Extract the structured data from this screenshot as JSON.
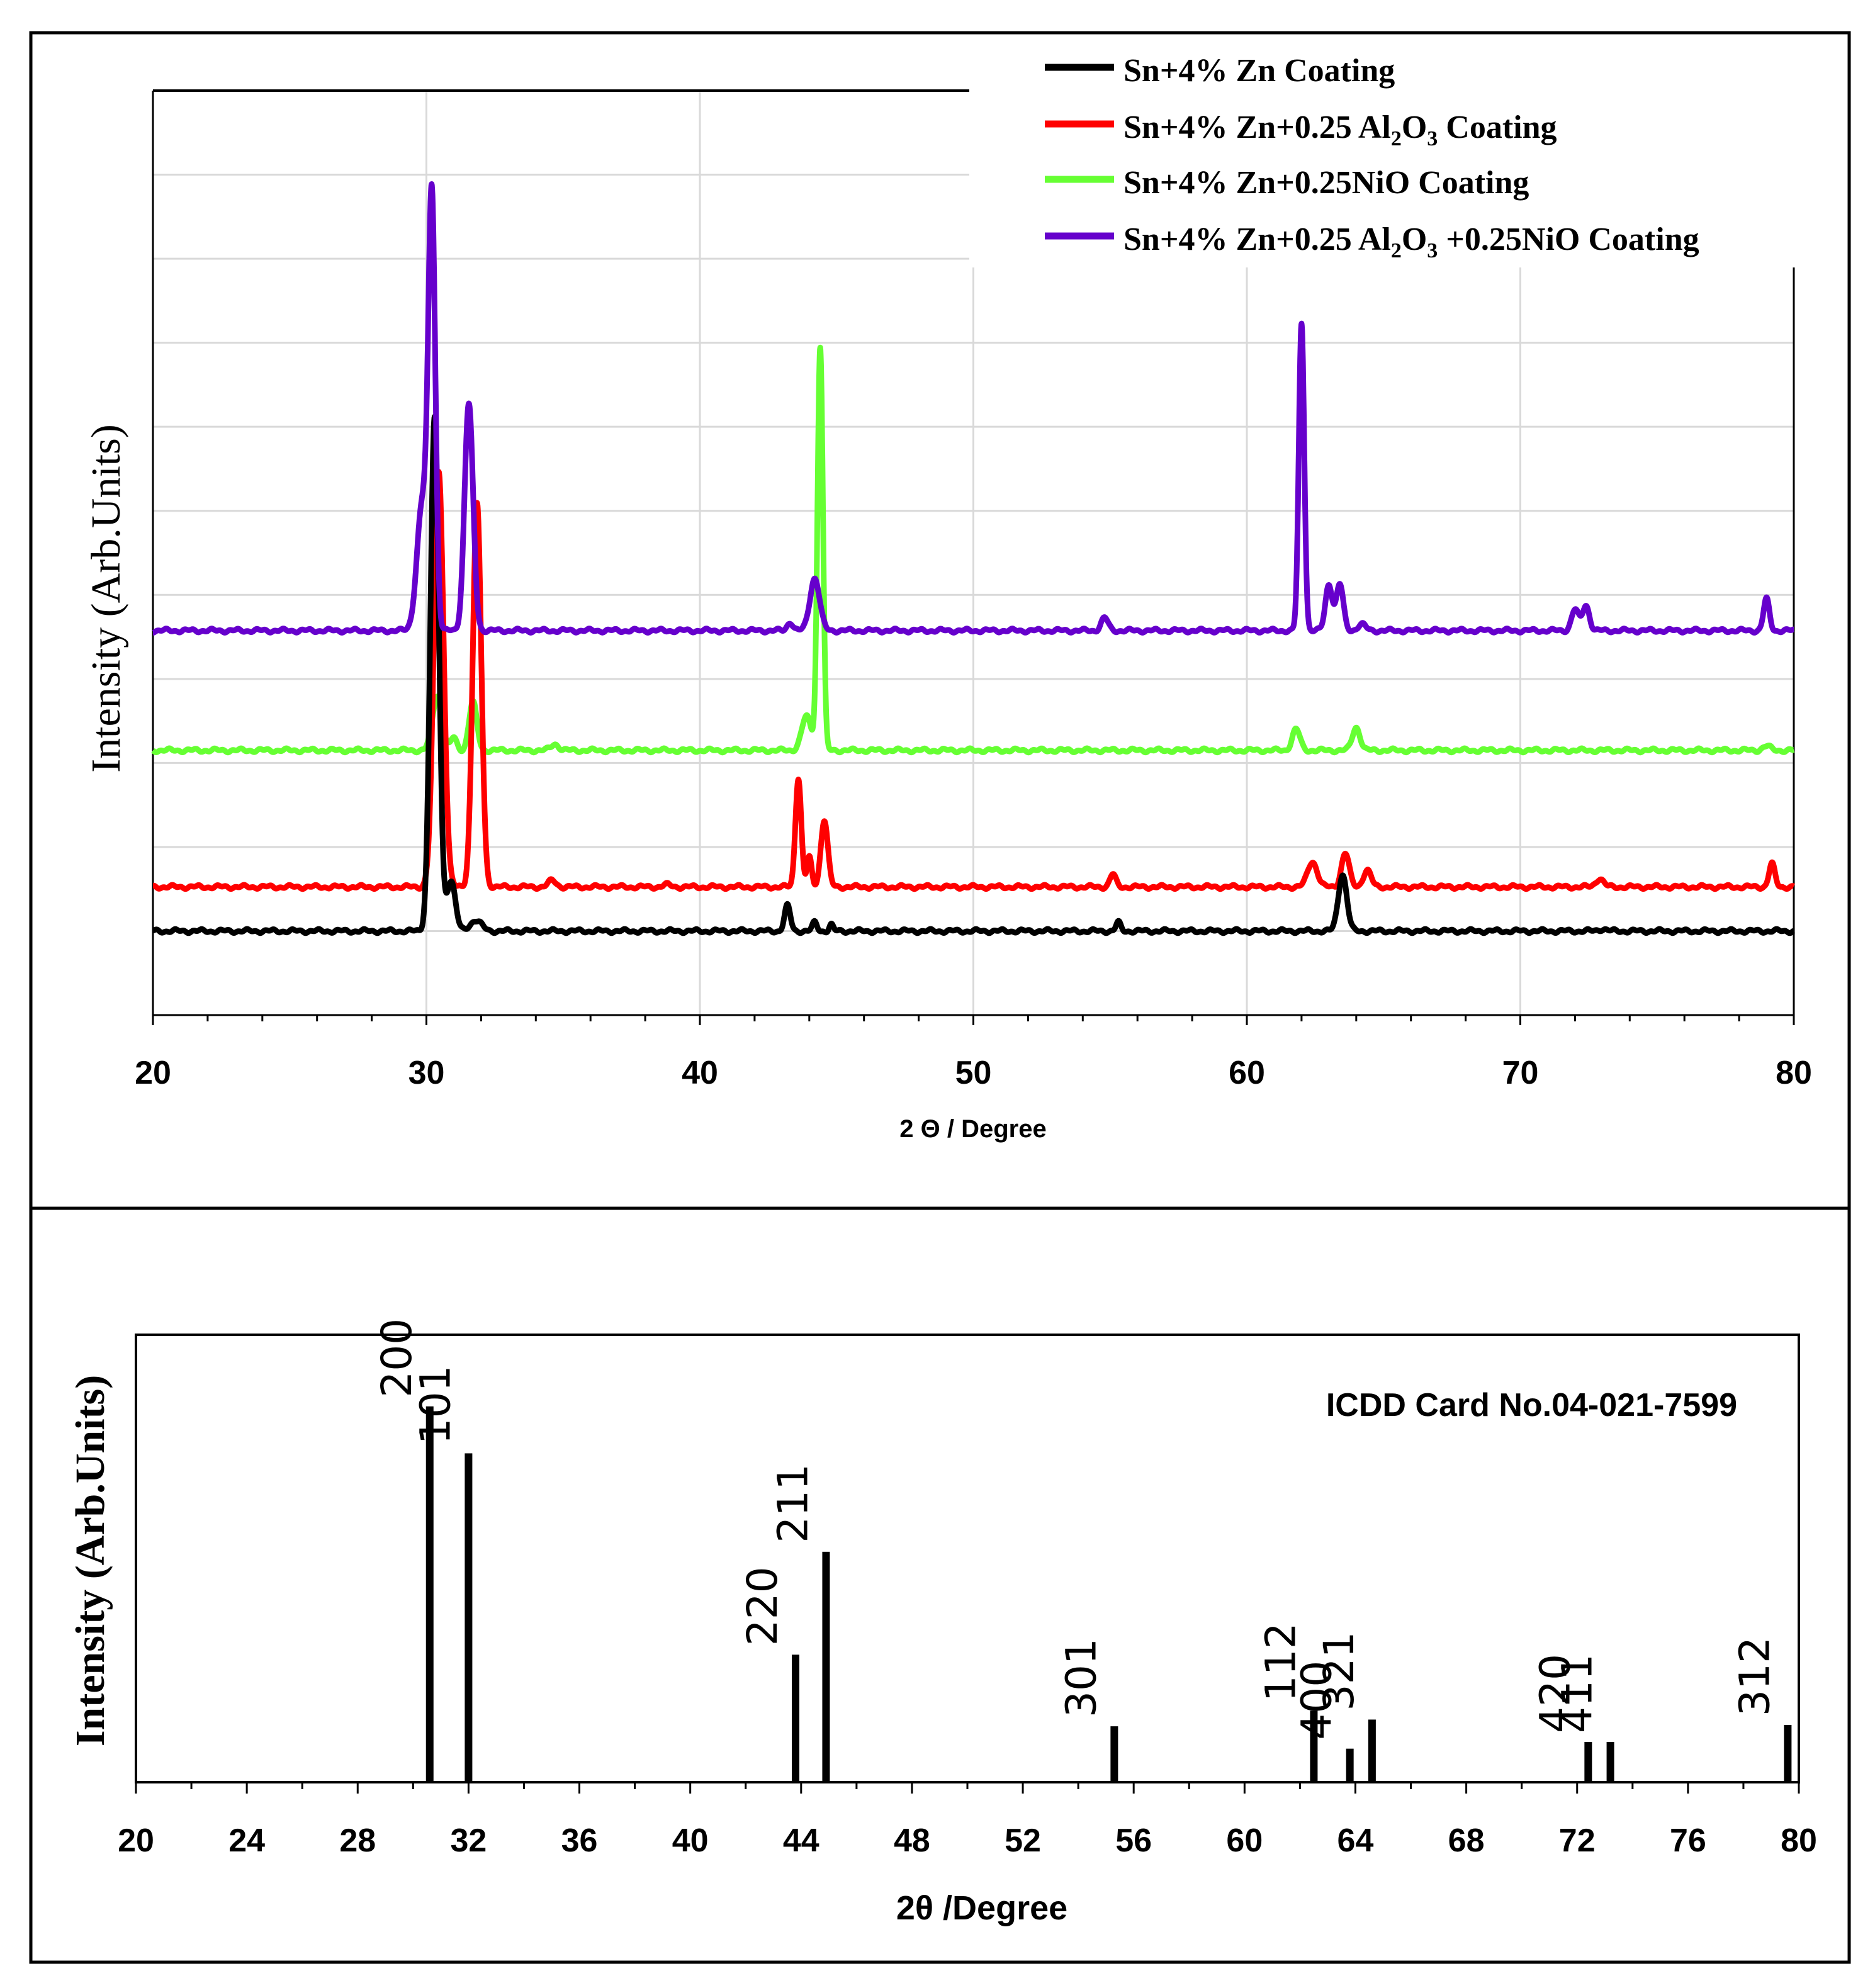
{
  "chart_data": [
    {
      "type": "line",
      "panel": "top",
      "xlabel": "2 Θ / Degree",
      "ylabel": "Intensity (Arb.Units)",
      "xlim": [
        20,
        80
      ],
      "ylim": [
        -2,
        20
      ],
      "x_ticks": [
        "20",
        "30",
        "40",
        "50",
        "60",
        "70",
        "80"
      ],
      "grid": true,
      "legend_position": "top-right",
      "series": [
        {
          "name": "Sn+4% Zn Coating",
          "legend_text": {
            "main": "Sn+4% Zn Coating"
          },
          "color": "#000000",
          "baseline": 0,
          "peaks": [
            [
              30.3,
              12.2,
              0.22
            ],
            [
              30.9,
              1.2,
              0.22
            ],
            [
              31.8,
              0.25,
              0.3
            ],
            [
              43.2,
              0.6,
              0.15
            ],
            [
              44.2,
              0.2,
              0.12
            ],
            [
              44.8,
              0.15,
              0.1
            ],
            [
              55.3,
              0.2,
              0.12
            ],
            [
              63.5,
              1.35,
              0.22
            ],
            [
              73.0,
              0.05,
              0.2
            ]
          ]
        },
        {
          "name": "Sn+4% Zn+0.25 Al₂O₃ Coating",
          "legend_text": {
            "main": "Sn+4% Zn+0.25  Al",
            "sub1": "2",
            "mid": "O",
            "sub2": "3",
            "tail": " Coating"
          },
          "color": "#ff0000",
          "baseline": 1.05,
          "peaks": [
            [
              30.45,
              9.9,
              0.25
            ],
            [
              31.85,
              9.1,
              0.22
            ],
            [
              34.6,
              0.15,
              0.2
            ],
            [
              38.8,
              0.05,
              0.2
            ],
            [
              43.6,
              2.6,
              0.15
            ],
            [
              44.0,
              0.7,
              0.12
            ],
            [
              44.55,
              1.6,
              0.18
            ],
            [
              55.1,
              0.3,
              0.15
            ],
            [
              62.4,
              0.6,
              0.25
            ],
            [
              63.6,
              0.8,
              0.2
            ],
            [
              64.4,
              0.4,
              0.2
            ],
            [
              72.9,
              0.2,
              0.2
            ],
            [
              79.2,
              0.55,
              0.15
            ]
          ]
        },
        {
          "name": "Sn+4% Zn+0.25NiO Coating",
          "legend_text": {
            "main": "Sn+4% Zn+0.25NiO Coating"
          },
          "color": "#66ff33",
          "baseline": 4.3,
          "peaks": [
            [
              30.4,
              1.3,
              0.25
            ],
            [
              31.0,
              0.3,
              0.15
            ],
            [
              31.7,
              1.15,
              0.2
            ],
            [
              34.7,
              0.15,
              0.2
            ],
            [
              43.9,
              0.8,
              0.25
            ],
            [
              44.4,
              9.6,
              0.14
            ],
            [
              61.8,
              0.5,
              0.2
            ],
            [
              64.0,
              0.55,
              0.2
            ],
            [
              79.0,
              0.1,
              0.2
            ]
          ]
        },
        {
          "name": "Sn+4% Zn+0.25 Al₂O₃ +0.25NiO Coating",
          "legend_text": {
            "main": "Sn+4% Zn+0.25  Al",
            "sub1": "2",
            "mid": "O",
            "sub2": "3",
            "tail": " +0.25NiO Coating"
          },
          "color": "#6600cc",
          "baseline": 7.15,
          "peaks": [
            [
              29.85,
              3.0,
              0.28
            ],
            [
              30.2,
              10.0,
              0.18
            ],
            [
              31.55,
              5.4,
              0.22
            ],
            [
              43.3,
              0.2,
              0.15
            ],
            [
              44.2,
              1.25,
              0.25
            ],
            [
              54.8,
              0.3,
              0.18
            ],
            [
              62.0,
              7.3,
              0.14
            ],
            [
              63.0,
              1.1,
              0.18
            ],
            [
              63.4,
              1.1,
              0.18
            ],
            [
              64.2,
              0.15,
              0.2
            ],
            [
              72.0,
              0.5,
              0.18
            ],
            [
              72.4,
              0.6,
              0.18
            ],
            [
              79.0,
              0.75,
              0.15
            ]
          ]
        }
      ]
    },
    {
      "type": "bar",
      "panel": "bottom",
      "title": "ICDD Card No.04-021-7599",
      "xlabel": "2θ /Degree",
      "ylabel": "Intensity (Arb.Units)",
      "xlim": [
        20,
        80
      ],
      "ylim": [
        0,
        100
      ],
      "x_ticks": [
        "20",
        "24",
        "28",
        "32",
        "36",
        "40",
        "44",
        "48",
        "52",
        "56",
        "60",
        "64",
        "68",
        "72",
        "76",
        "80"
      ],
      "peaks": [
        {
          "x": 30.6,
          "value": 84,
          "label": "200"
        },
        {
          "x": 32.0,
          "value": 73.5,
          "label": "101"
        },
        {
          "x": 43.8,
          "value": 28.5,
          "label": "220"
        },
        {
          "x": 44.9,
          "value": 51.5,
          "label": "211"
        },
        {
          "x": 55.3,
          "value": 12.5,
          "label": "301"
        },
        {
          "x": 62.5,
          "value": 16,
          "label": "112"
        },
        {
          "x": 63.8,
          "value": 7.5,
          "label": "400"
        },
        {
          "x": 64.6,
          "value": 14,
          "label": "321"
        },
        {
          "x": 72.4,
          "value": 9,
          "label": "420"
        },
        {
          "x": 73.2,
          "value": 9,
          "label": "411"
        },
        {
          "x": 79.6,
          "value": 12.8,
          "label": "312"
        }
      ]
    }
  ]
}
